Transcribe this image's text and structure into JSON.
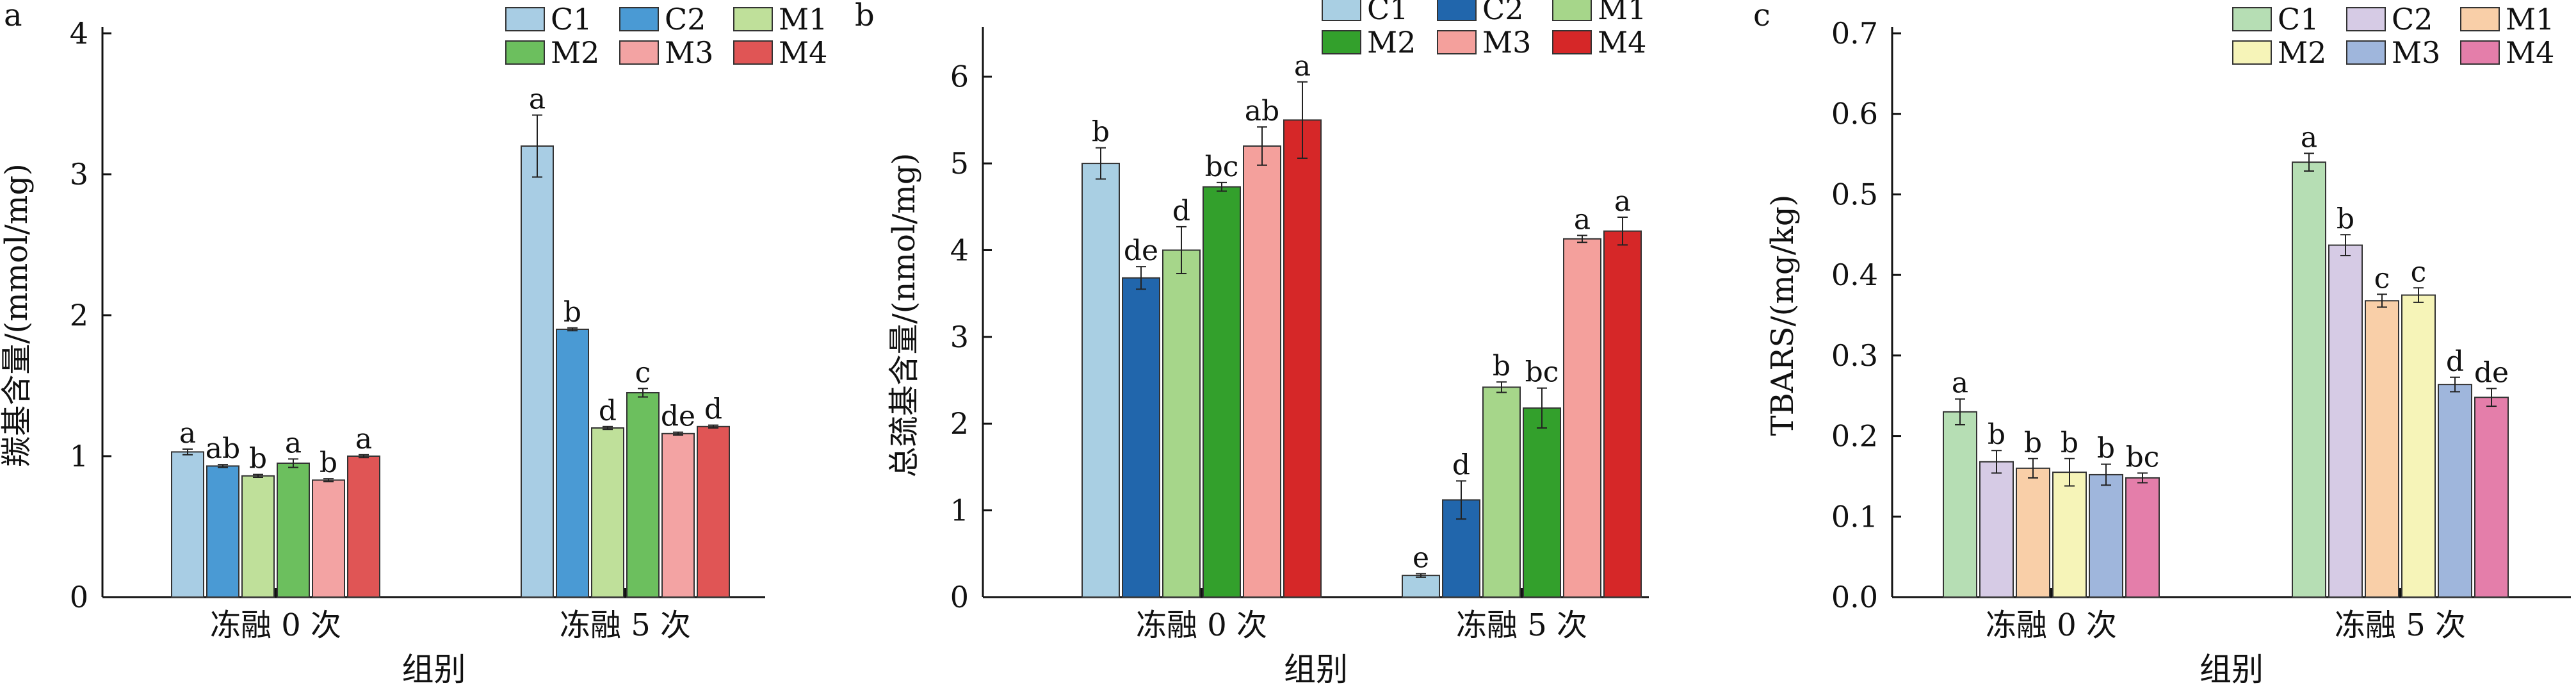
{
  "chart_data": [
    {
      "panel": "a",
      "type": "bar",
      "title": "",
      "xlabel": "组别",
      "ylabel": "羰基含量/(mmol/mg)",
      "ylim": [
        0,
        4
      ],
      "yticks": [
        0,
        1,
        2,
        3,
        4
      ],
      "categories": [
        "冻融 0 次",
        "冻融 5 次"
      ],
      "legend_position": "top-right",
      "series": [
        {
          "name": "C1",
          "color": "#a8cde4",
          "values": [
            1.03,
            3.2
          ],
          "errors": [
            0.02,
            0.22
          ],
          "labels": [
            "a",
            "a"
          ]
        },
        {
          "name": "C2",
          "color": "#4a9ad4",
          "values": [
            0.93,
            1.9
          ],
          "errors": [
            0.01,
            0.01
          ],
          "labels": [
            "ab",
            "b"
          ]
        },
        {
          "name": "M1",
          "color": "#bfe09a",
          "values": [
            0.86,
            1.2
          ],
          "errors": [
            0.01,
            0.01
          ],
          "labels": [
            "b",
            "d"
          ]
        },
        {
          "name": "M2",
          "color": "#6cbf5e",
          "values": [
            0.95,
            1.45
          ],
          "errors": [
            0.03,
            0.03
          ],
          "labels": [
            "a",
            "c"
          ]
        },
        {
          "name": "M3",
          "color": "#f3a3a3",
          "values": [
            0.83,
            1.16
          ],
          "errors": [
            0.01,
            0.01
          ],
          "labels": [
            "b",
            "de"
          ]
        },
        {
          "name": "M4",
          "color": "#e05555",
          "values": [
            1.0,
            1.21
          ],
          "errors": [
            0.01,
            0.01
          ],
          "labels": [
            "a",
            "d"
          ]
        }
      ]
    },
    {
      "panel": "b",
      "type": "bar",
      "title": "",
      "xlabel": "组别",
      "ylabel": "总巯基含量/(nmol/mg)",
      "ylim": [
        0,
        6.5
      ],
      "yticks": [
        0,
        1,
        2,
        3,
        4,
        5,
        6
      ],
      "categories": [
        "冻融 0 次",
        "冻融 5 次"
      ],
      "legend_position": "top-right",
      "series": [
        {
          "name": "C1",
          "color": "#a9cfe3",
          "values": [
            5.0,
            0.25
          ],
          "errors": [
            0.18,
            0.02
          ],
          "labels": [
            "b",
            "e"
          ]
        },
        {
          "name": "C2",
          "color": "#2166ac",
          "values": [
            3.68,
            1.12
          ],
          "errors": [
            0.13,
            0.22
          ],
          "labels": [
            "de",
            "d"
          ]
        },
        {
          "name": "M1",
          "color": "#a6d68a",
          "values": [
            4.0,
            2.42
          ],
          "errors": [
            0.27,
            0.06
          ],
          "labels": [
            "d",
            "b"
          ]
        },
        {
          "name": "M2",
          "color": "#33a02c",
          "values": [
            4.73,
            2.18
          ],
          "errors": [
            0.05,
            0.23
          ],
          "labels": [
            "bc",
            "bc"
          ]
        },
        {
          "name": "M3",
          "color": "#f4a09c",
          "values": [
            5.2,
            4.13
          ],
          "errors": [
            0.22,
            0.04
          ],
          "labels": [
            "ab",
            "a"
          ]
        },
        {
          "name": "M4",
          "color": "#d62728",
          "values": [
            5.5,
            4.22
          ],
          "errors": [
            0.44,
            0.16
          ],
          "labels": [
            "a",
            "a"
          ]
        }
      ]
    },
    {
      "panel": "c",
      "type": "bar",
      "title": "",
      "xlabel": "组别",
      "ylabel": "TBARS/(mg/kg)",
      "ylim": [
        0,
        0.7
      ],
      "yticks": [
        0.0,
        0.1,
        0.2,
        0.3,
        0.4,
        0.5,
        0.6,
        0.7
      ],
      "categories": [
        "冻融 0 次",
        "冻融 5 次"
      ],
      "legend_position": "top-right",
      "series": [
        {
          "name": "C1",
          "color": "#b6deb4",
          "values": [
            0.23,
            0.54
          ],
          "errors": [
            0.016,
            0.011
          ],
          "labels": [
            "a",
            "a"
          ]
        },
        {
          "name": "C2",
          "color": "#d6cbe5",
          "values": [
            0.168,
            0.437
          ],
          "errors": [
            0.014,
            0.013
          ],
          "labels": [
            "b",
            "b"
          ]
        },
        {
          "name": "M1",
          "color": "#f9cfa8",
          "values": [
            0.16,
            0.368
          ],
          "errors": [
            0.012,
            0.008
          ],
          "labels": [
            "b",
            "c"
          ]
        },
        {
          "name": "M2",
          "color": "#f6f4b8",
          "values": [
            0.155,
            0.375
          ],
          "errors": [
            0.017,
            0.009
          ],
          "labels": [
            "b",
            "c"
          ]
        },
        {
          "name": "M3",
          "color": "#9fb6dc",
          "values": [
            0.152,
            0.264
          ],
          "errors": [
            0.013,
            0.009
          ],
          "labels": [
            "b",
            "d"
          ]
        },
        {
          "name": "M4",
          "color": "#e47eaa",
          "values": [
            0.148,
            0.248
          ],
          "errors": [
            0.006,
            0.011
          ],
          "labels": [
            "bc",
            "de"
          ]
        }
      ]
    }
  ]
}
